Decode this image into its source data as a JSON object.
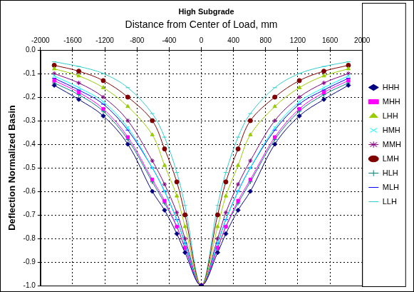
{
  "chart_data": {
    "type": "line",
    "title": "High Subgrade",
    "x_label": "Distance from Center of Load, mm",
    "y_label": "Deflection Normalized Basin",
    "x": [
      -1829,
      -1524,
      -1219,
      -914,
      -610,
      -457,
      -305,
      -203,
      0,
      203,
      305,
      457,
      610,
      914,
      1219,
      1524,
      1829
    ],
    "xlim": [
      -2000,
      2000
    ],
    "xticks": [
      -2000,
      -1600,
      -1200,
      -800,
      -400,
      0,
      400,
      800,
      1200,
      1600,
      2000
    ],
    "ylim": [
      -1,
      0
    ],
    "yticks": [
      {
        "value": 0,
        "label": "0.0"
      },
      -0.1,
      -0.2,
      -0.3,
      -0.4,
      -0.5,
      -0.6,
      -0.7,
      -0.8,
      -0.9,
      {
        "value": -1,
        "label": "-1.0"
      }
    ],
    "grid": true,
    "legend": "right",
    "series": [
      {
        "name": "HHH",
        "color": "#000080",
        "marker": "diamond",
        "values": [
          -0.15,
          -0.21,
          -0.28,
          -0.4,
          -0.6,
          -0.68,
          -0.78,
          -0.86,
          -1,
          -0.86,
          -0.78,
          -0.68,
          -0.6,
          -0.4,
          -0.28,
          -0.21,
          -0.15
        ]
      },
      {
        "name": "MHH",
        "color": "#ff00ff",
        "marker": "square",
        "values": [
          -0.13,
          -0.18,
          -0.25,
          -0.37,
          -0.55,
          -0.64,
          -0.75,
          -0.84,
          -1,
          -0.84,
          -0.75,
          -0.64,
          -0.55,
          -0.37,
          -0.25,
          -0.18,
          -0.13
        ]
      },
      {
        "name": "LHH",
        "color": "#99cc00",
        "marker": "triangle",
        "values": [
          -0.08,
          -0.11,
          -0.16,
          -0.24,
          -0.36,
          -0.49,
          -0.62,
          -0.75,
          -1,
          -0.75,
          -0.62,
          -0.49,
          -0.36,
          -0.24,
          -0.16,
          -0.11,
          -0.08
        ]
      },
      {
        "name": "HMH",
        "color": "#00ffff",
        "marker": "x",
        "values": [
          -0.11,
          -0.16,
          -0.22,
          -0.33,
          -0.5,
          -0.6,
          -0.72,
          -0.82,
          -1,
          -0.82,
          -0.72,
          -0.6,
          -0.5,
          -0.33,
          -0.22,
          -0.16,
          -0.11
        ]
      },
      {
        "name": "MMH",
        "color": "#800080",
        "marker": "star",
        "values": [
          -0.1,
          -0.14,
          -0.2,
          -0.3,
          -0.47,
          -0.57,
          -0.69,
          -0.8,
          -1,
          -0.8,
          -0.69,
          -0.57,
          -0.47,
          -0.3,
          -0.2,
          -0.14,
          -0.1
        ]
      },
      {
        "name": "LMH",
        "color": "#800000",
        "marker": "circle",
        "values": [
          -0.065,
          -0.09,
          -0.13,
          -0.2,
          -0.3,
          -0.42,
          -0.56,
          -0.7,
          -1,
          -0.7,
          -0.56,
          -0.42,
          -0.3,
          -0.2,
          -0.13,
          -0.09,
          -0.065
        ]
      },
      {
        "name": "HLH",
        "color": "#008080",
        "marker": "plus",
        "values": [
          -0.14,
          -0.19,
          -0.26,
          -0.38,
          -0.56,
          -0.65,
          -0.75,
          -0.84,
          -1,
          -0.84,
          -0.75,
          -0.65,
          -0.56,
          -0.38,
          -0.26,
          -0.19,
          -0.14
        ]
      },
      {
        "name": "MLH",
        "color": "#0000ff",
        "marker": "dash",
        "values": [
          -0.12,
          -0.17,
          -0.23,
          -0.34,
          -0.5,
          -0.6,
          -0.72,
          -0.82,
          -1,
          -0.82,
          -0.72,
          -0.6,
          -0.5,
          -0.34,
          -0.23,
          -0.17,
          -0.12
        ]
      },
      {
        "name": "LLH",
        "color": "#33cccc",
        "marker": "dash",
        "values": [
          -0.05,
          -0.07,
          -0.1,
          -0.16,
          -0.27,
          -0.37,
          -0.52,
          -0.66,
          -1,
          -0.66,
          -0.52,
          -0.37,
          -0.27,
          -0.16,
          -0.1,
          -0.07,
          -0.05
        ]
      }
    ]
  }
}
